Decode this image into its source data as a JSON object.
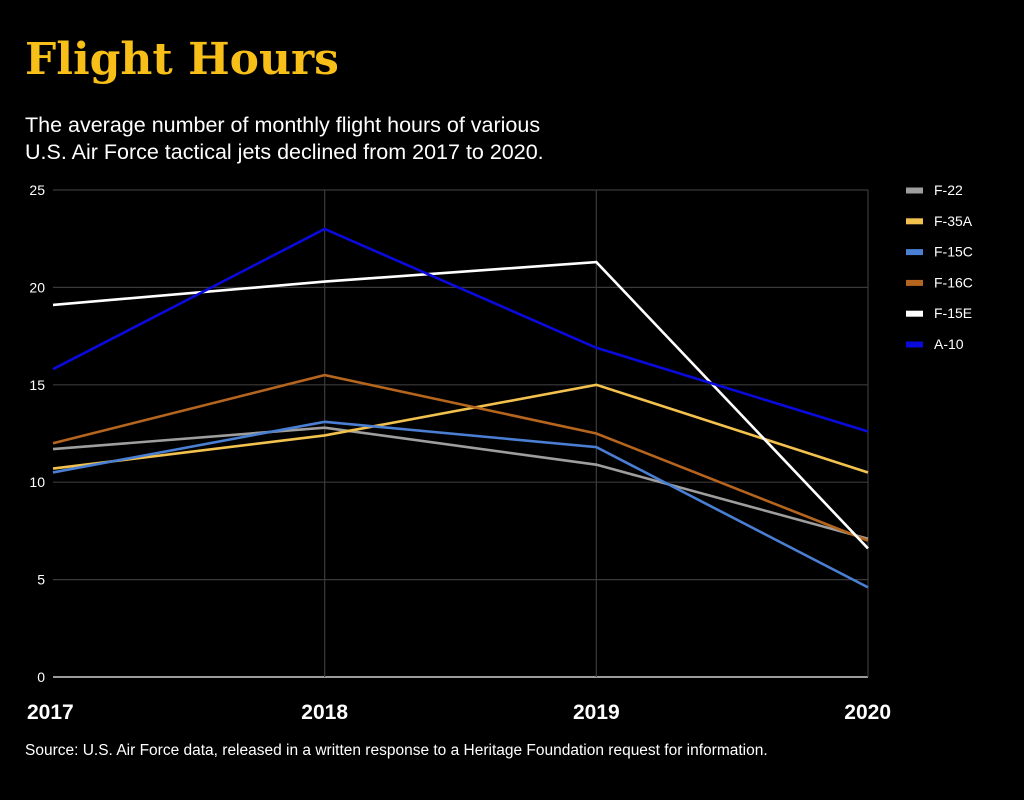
{
  "chart_data": {
    "type": "line",
    "title": "Flight Hours",
    "subtitle": "The average number of monthly flight hours of various U.S. Air Force tactical jets declined from 2017 to 2020.",
    "xlabel": "",
    "ylabel": "",
    "x": [
      "2017",
      "2018",
      "2019",
      "2020"
    ],
    "ylim": [
      0,
      25
    ],
    "yticks": [
      0,
      5,
      10,
      15,
      20,
      25
    ],
    "grid": true,
    "legend_position": "right",
    "series": [
      {
        "name": "F-22",
        "color": "#9e9e9e",
        "values": [
          11.7,
          12.8,
          10.9,
          7.1
        ]
      },
      {
        "name": "F-35A",
        "color": "#f2c14e",
        "values": [
          10.7,
          12.4,
          15.0,
          10.5
        ]
      },
      {
        "name": "F-15C",
        "color": "#4a7fd4",
        "values": [
          10.5,
          13.1,
          11.8,
          4.6
        ]
      },
      {
        "name": "F-16C",
        "color": "#b5651d",
        "values": [
          12.0,
          15.5,
          12.5,
          7.0
        ]
      },
      {
        "name": "F-15E",
        "color": "#ffffff",
        "values": [
          19.1,
          20.3,
          21.3,
          6.6
        ]
      },
      {
        "name": "A-10",
        "color": "#0a0adc",
        "values": [
          15.8,
          23.0,
          16.9,
          12.6
        ]
      }
    ],
    "source": "Source: U.S. Air Force data, released in a written response to a Heritage Foundation request for information."
  },
  "header": {
    "title": "Flight Hours",
    "subtitle_line1": "The average number of monthly flight hours of various",
    "subtitle_line2": "U.S. Air Force tactical jets declined from 2017 to 2020."
  },
  "footer": {
    "source": "Source: U.S. Air Force data, released in a written response to a Heritage Foundation request for information."
  },
  "colors": {
    "title": "#f7bf17",
    "background": "#000000",
    "gridline": "#3a3a3a"
  }
}
